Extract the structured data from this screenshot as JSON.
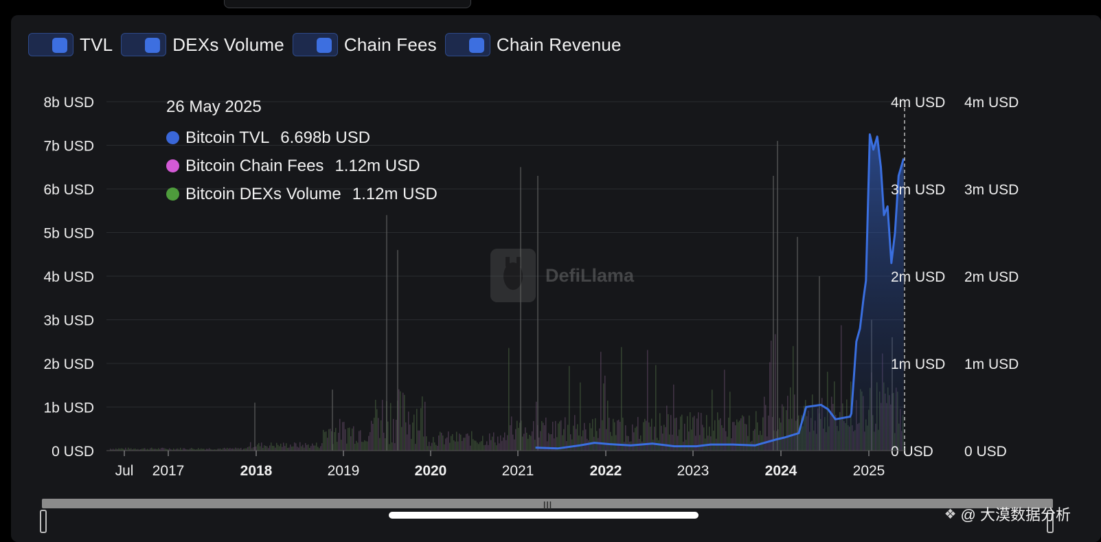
{
  "legend": [
    {
      "label": "TVL"
    },
    {
      "label": "DEXs Volume"
    },
    {
      "label": "Chain Fees"
    },
    {
      "label": "Chain Revenue"
    }
  ],
  "tooltip": {
    "date": "26 May 2025",
    "rows": [
      {
        "name": "Bitcoin TVL",
        "value": "6.698b USD",
        "color": "#3a67d8"
      },
      {
        "name": "Bitcoin Chain Fees",
        "value": "1.12m USD",
        "color": "#d35ad6"
      },
      {
        "name": "Bitcoin DEXs Volume",
        "value": "1.12m USD",
        "color": "#4e9c3c"
      }
    ]
  },
  "watermark": "DefiLlama",
  "credit": "@ 大漠数据分析",
  "colors": {
    "tvl": "#3a6fe0",
    "fees": "#d35ad6",
    "dex": "#4e9c3c",
    "background": "#16171a"
  },
  "chart_data": {
    "type": "line",
    "title": "",
    "x_ticks": [
      {
        "label": "Jul",
        "bold": false
      },
      {
        "label": "2017",
        "bold": false
      },
      {
        "label": "2018",
        "bold": true
      },
      {
        "label": "2019",
        "bold": false
      },
      {
        "label": "2020",
        "bold": true
      },
      {
        "label": "2021",
        "bold": false
      },
      {
        "label": "2022",
        "bold": true
      },
      {
        "label": "2023",
        "bold": false
      },
      {
        "label": "2024",
        "bold": true
      },
      {
        "label": "2025",
        "bold": false
      }
    ],
    "y_left": {
      "ticks": [
        "0 USD",
        "1b USD",
        "2b USD",
        "3b USD",
        "4b USD",
        "5b USD",
        "6b USD",
        "7b USD",
        "8b USD"
      ],
      "ylim": [
        0,
        8
      ]
    },
    "y_right_1": {
      "ticks": [
        "0 USD",
        "1m USD",
        "2m USD",
        "3m USD",
        "4m USD"
      ],
      "ylim": [
        0,
        4
      ]
    },
    "y_right_2": {
      "ticks": [
        "0 USD",
        "1m USD",
        "2m USD",
        "3m USD",
        "4m USD"
      ],
      "ylim": [
        0,
        4
      ]
    },
    "grid": true,
    "series": [
      {
        "name": "Bitcoin TVL",
        "unit": "b USD",
        "x": [
          "2021-03",
          "2021-06",
          "2021-09",
          "2021-11",
          "2022-01",
          "2022-04",
          "2022-07",
          "2022-10",
          "2023-01",
          "2023-03",
          "2023-06",
          "2023-09",
          "2023-12",
          "2024-01",
          "2024-03",
          "2024-04",
          "2024-06",
          "2024-07",
          "2024-08",
          "2024-10",
          "2024-10-20",
          "2024-11-10",
          "2024-11-25",
          "2024-12-10",
          "2024-12-20",
          "2025-01-05",
          "2025-01-20",
          "2025-02-05",
          "2025-02-20",
          "2025-03-05",
          "2025-03-20",
          "2025-04-05",
          "2025-04-20",
          "2025-05-05",
          "2025-05-26"
        ],
        "values": [
          0.07,
          0.05,
          0.12,
          0.18,
          0.15,
          0.12,
          0.16,
          0.1,
          0.1,
          0.14,
          0.14,
          0.12,
          0.26,
          0.3,
          0.4,
          1.0,
          1.05,
          0.95,
          0.72,
          0.78,
          0.85,
          2.5,
          2.8,
          3.5,
          3.9,
          7.25,
          6.9,
          7.2,
          6.5,
          5.4,
          5.6,
          4.3,
          5.0,
          6.3,
          6.698
        ]
      },
      {
        "name": "Bitcoin Chain Fees",
        "unit": "m USD",
        "x": [
          "2025-05-26"
        ],
        "values": [
          1.12
        ]
      },
      {
        "name": "Bitcoin DEXs Volume",
        "unit": "m USD",
        "x": [
          "2025-05-26"
        ],
        "values": [
          1.12
        ]
      }
    ]
  }
}
